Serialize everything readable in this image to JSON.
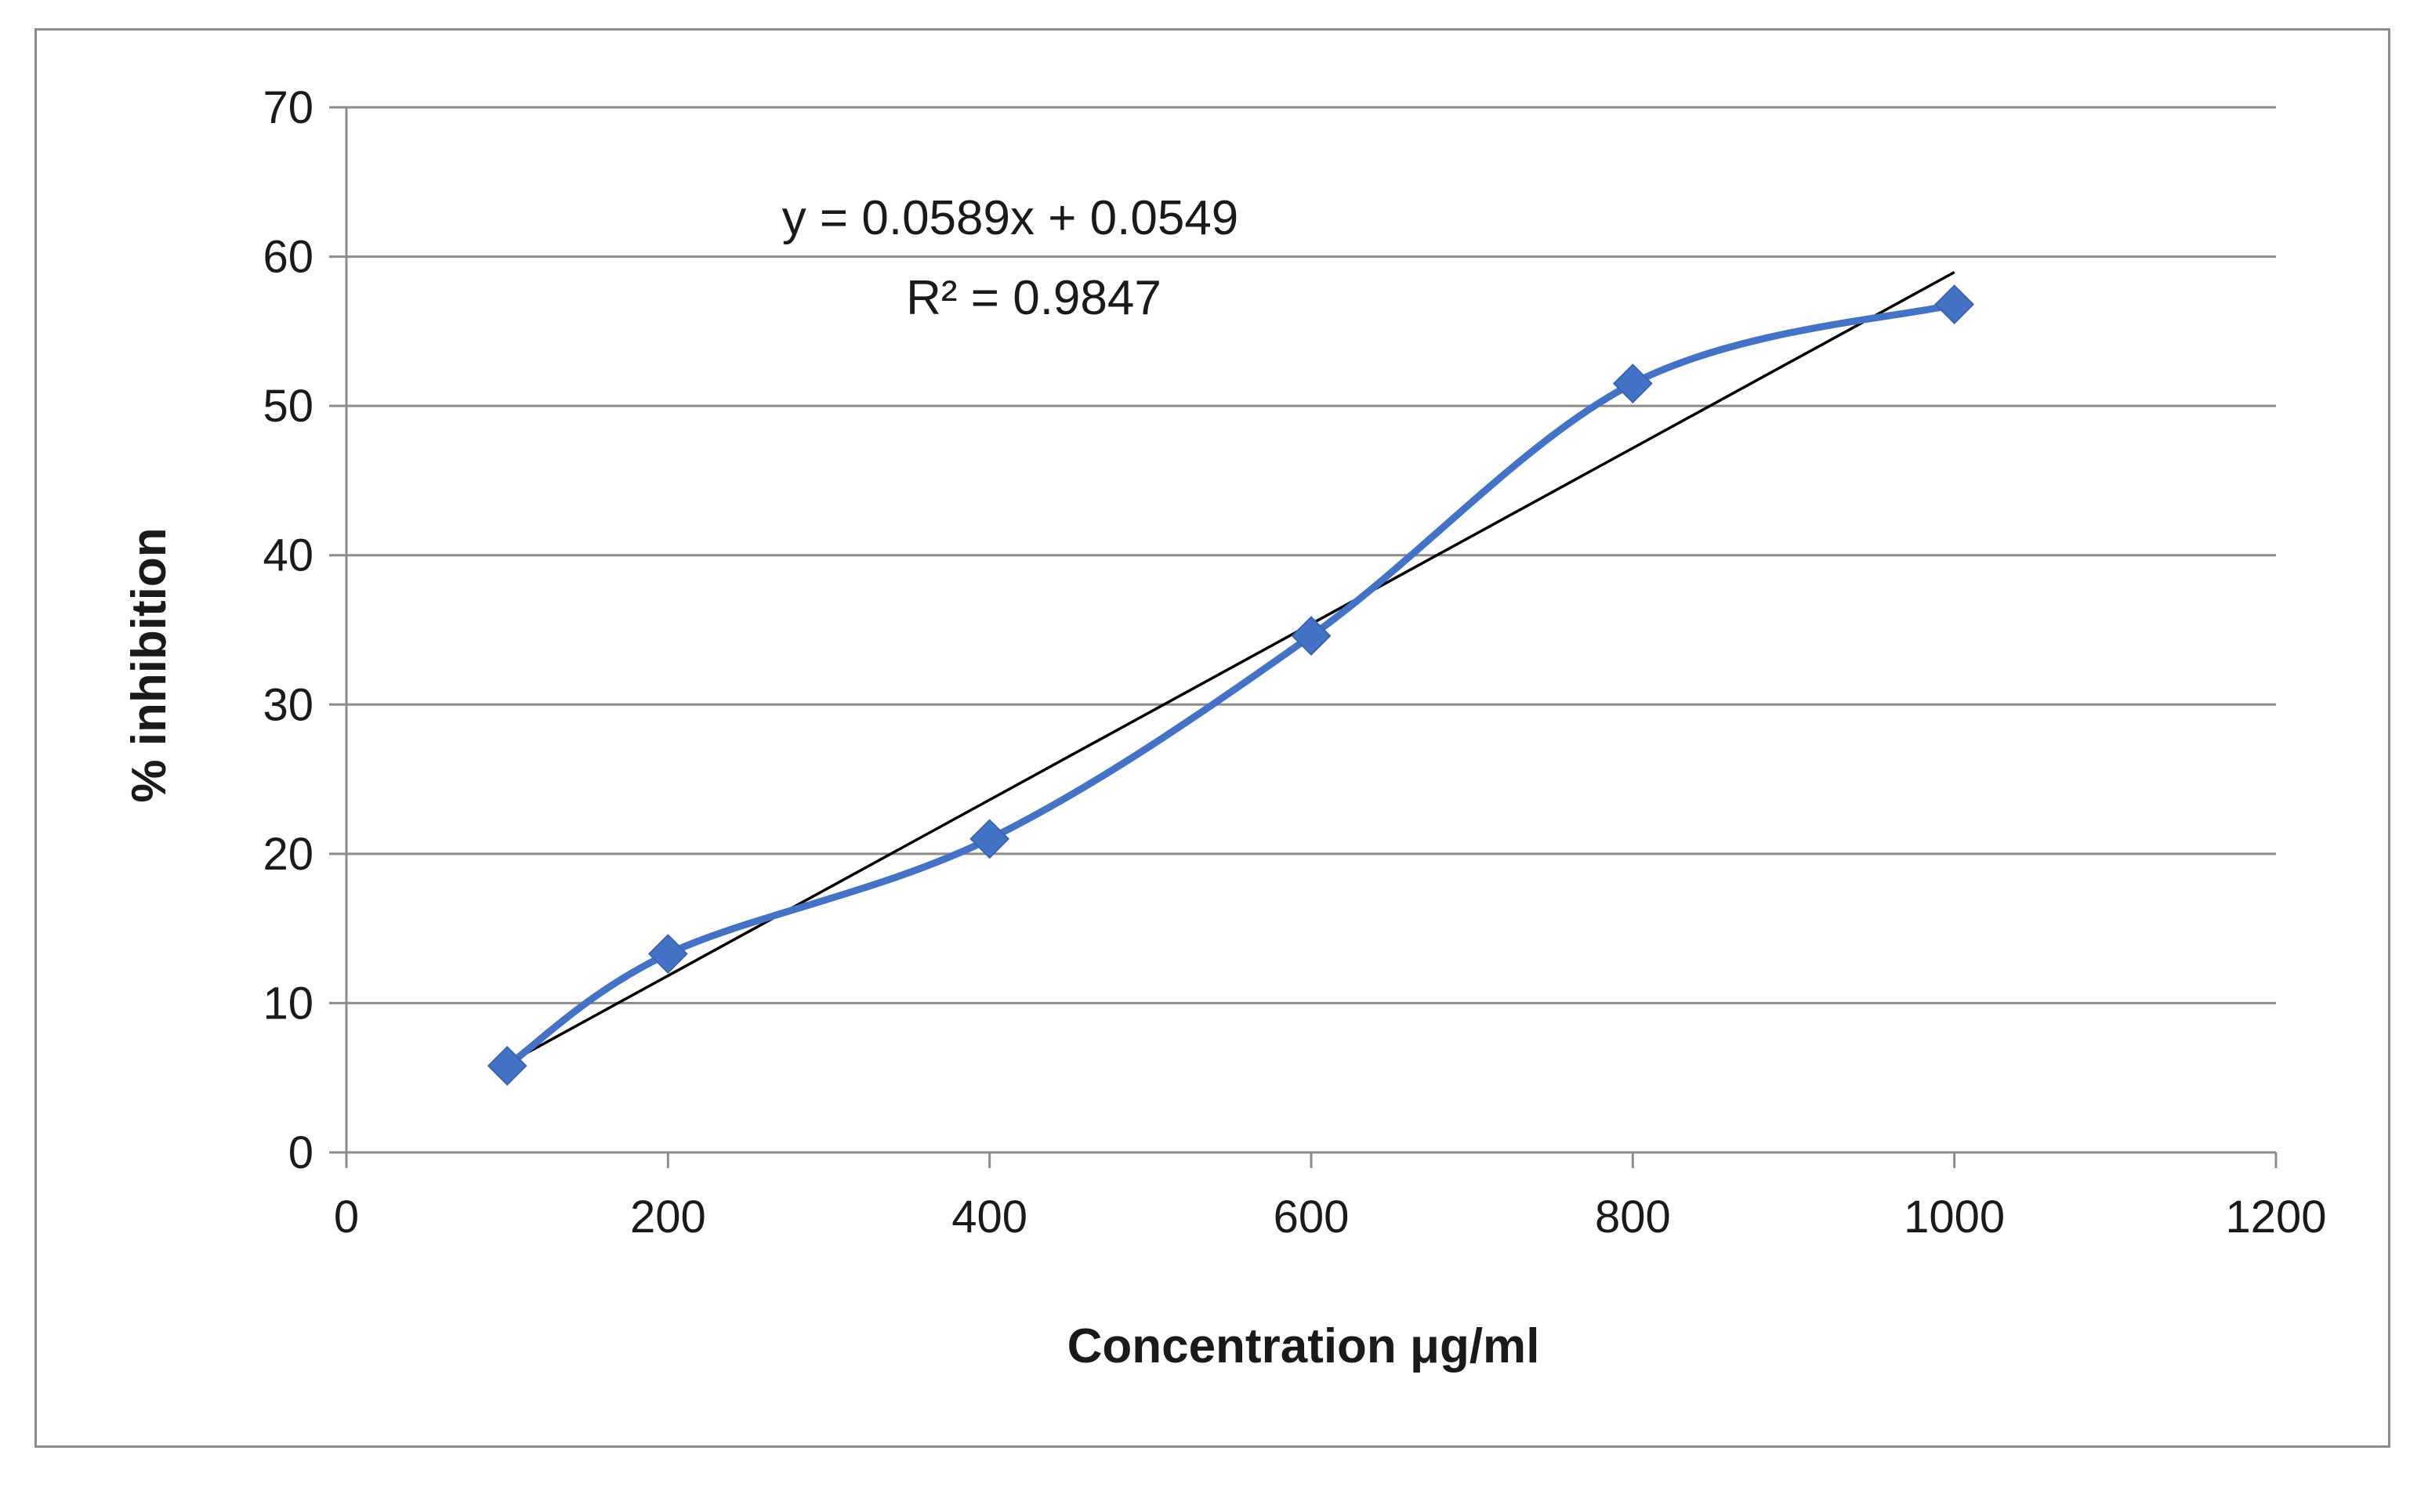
{
  "chart_data": {
    "type": "scatter",
    "xlabel": "Concentration μg/ml",
    "ylabel": "% inhibition",
    "xlim": [
      0,
      1200
    ],
    "ylim": [
      0,
      70
    ],
    "x_ticks": [
      "0",
      "200",
      "400",
      "600",
      "800",
      "1000",
      "1200"
    ],
    "y_ticks": [
      "0",
      "10",
      "20",
      "30",
      "40",
      "50",
      "60",
      "70"
    ],
    "grid": "horizontal",
    "legend": "none",
    "series": [
      {
        "line": "smooth",
        "marker": "diamond",
        "color": "#4472C4",
        "x": [
          100,
          200,
          400,
          600,
          800,
          1000
        ],
        "y": [
          5.8,
          13.3,
          21.0,
          34.6,
          51.5,
          56.8
        ]
      }
    ],
    "trendline": {
      "type": "linear",
      "color": "#000000",
      "x_range": [
        100,
        1000
      ],
      "equation": "y = 0.0589x + 0.0549",
      "r_squared": "R² = 0.9847"
    }
  }
}
